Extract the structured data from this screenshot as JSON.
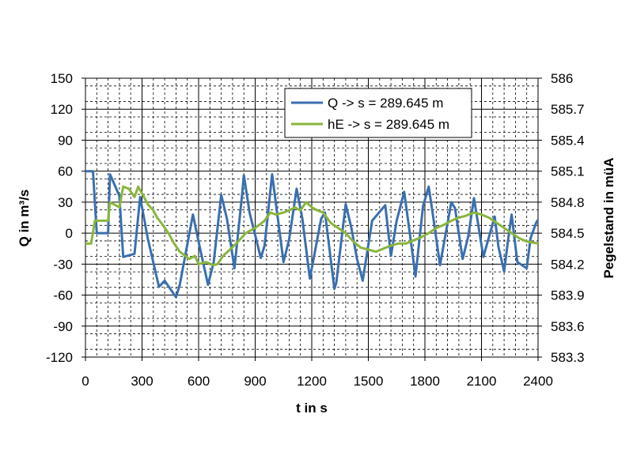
{
  "chart_data": {
    "type": "line",
    "title": "",
    "xlabel": "t in s",
    "ylabel_left": "Q in m³/s",
    "ylabel_right": "Pegelstand in müA",
    "xlim": [
      0,
      2400
    ],
    "ylim_left": [
      -120,
      150
    ],
    "ylim_right": [
      583.3,
      586.0
    ],
    "x_ticks": [
      "0",
      "300",
      "600",
      "900",
      "1200",
      "1500",
      "1800",
      "2100",
      "2400"
    ],
    "y_left_ticks": [
      "150",
      "120",
      "90",
      "60",
      "30",
      "0",
      "-30",
      "-60",
      "-90",
      "-120"
    ],
    "y_right_ticks": [
      "586",
      "585.7",
      "585.4",
      "585.1",
      "584.8",
      "584.5",
      "584.2",
      "583.9",
      "583.6",
      "583.3"
    ],
    "grid": true,
    "legend_position": "top-right",
    "series": [
      {
        "name": "Q -> s = 289.645 m",
        "axis": "left",
        "color": "#3a6fb0",
        "x": [
          0,
          40,
          60,
          120,
          130,
          180,
          200,
          260,
          290,
          330,
          390,
          420,
          480,
          500,
          570,
          610,
          650,
          680,
          720,
          750,
          790,
          830,
          840,
          870,
          930,
          950,
          990,
          1050,
          1080,
          1120,
          1150,
          1190,
          1250,
          1270,
          1320,
          1330,
          1380,
          1410,
          1440,
          1470,
          1520,
          1590,
          1620,
          1650,
          1690,
          1720,
          1750,
          1790,
          1820,
          1840,
          1880,
          1940,
          1960,
          2000,
          2030,
          2060,
          2110,
          2170,
          2190,
          2220,
          2240,
          2260,
          2290,
          2340,
          2360,
          2390,
          2400
        ],
        "values": [
          60,
          60,
          0,
          0,
          57,
          36,
          -23,
          -20,
          35,
          -5,
          -52,
          -46,
          -62,
          -50,
          18,
          -17,
          -50,
          -28,
          37,
          14,
          -34,
          36,
          56,
          20,
          -24,
          -12,
          57,
          -28,
          -6,
          43,
          14,
          -44,
          14,
          20,
          -54,
          -48,
          28,
          5,
          -25,
          -46,
          12,
          27,
          -22,
          12,
          40,
          0,
          -42,
          26,
          45,
          21,
          -31,
          30,
          24,
          -25,
          -3,
          34,
          -23,
          16,
          -13,
          -37,
          -8,
          18,
          -28,
          -34,
          -5,
          10,
          13
        ]
      },
      {
        "name": "hE -> s = 289.645 m",
        "axis": "right",
        "color": "#8ab63c",
        "x": [
          0,
          30,
          50,
          100,
          120,
          130,
          180,
          200,
          230,
          260,
          280,
          310,
          330,
          360,
          380,
          410,
          440,
          470,
          500,
          550,
          580,
          600,
          640,
          680,
          700,
          730,
          760,
          800,
          850,
          900,
          950,
          980,
          1010,
          1050,
          1080,
          1110,
          1140,
          1170,
          1200,
          1230,
          1260,
          1300,
          1340,
          1380,
          1420,
          1460,
          1500,
          1540,
          1580,
          1620,
          1660,
          1700,
          1740,
          1780,
          1820,
          1860,
          1900,
          1940,
          1980,
          2020,
          2060,
          2100,
          2140,
          2180,
          2220,
          2260,
          2300,
          2340,
          2400
        ],
        "values": [
          584.4,
          584.4,
          584.62,
          584.62,
          584.62,
          584.8,
          584.75,
          584.95,
          584.93,
          584.85,
          584.95,
          584.85,
          584.78,
          584.72,
          584.65,
          584.58,
          584.5,
          584.4,
          584.32,
          584.25,
          584.28,
          584.2,
          584.22,
          584.19,
          584.2,
          584.28,
          584.33,
          584.4,
          584.5,
          584.55,
          584.62,
          584.7,
          584.68,
          584.7,
          584.72,
          584.75,
          584.72,
          584.8,
          584.75,
          584.72,
          584.7,
          584.6,
          584.55,
          584.5,
          584.42,
          584.36,
          584.34,
          584.32,
          584.35,
          584.38,
          584.4,
          584.4,
          584.43,
          584.46,
          584.5,
          584.55,
          584.58,
          584.62,
          584.65,
          584.67,
          584.7,
          584.68,
          584.65,
          584.6,
          584.55,
          584.5,
          584.45,
          584.42,
          584.4
        ]
      }
    ]
  }
}
